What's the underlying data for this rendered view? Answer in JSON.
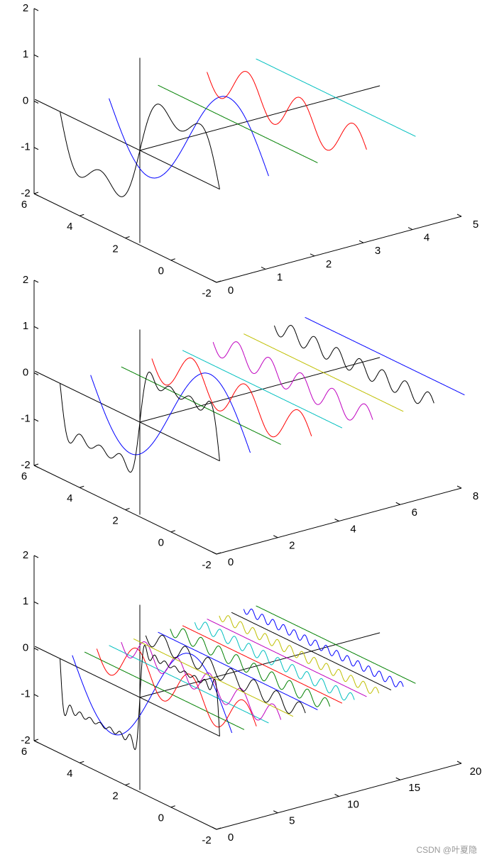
{
  "chart_data": [
    {
      "type": "line3d",
      "xlim": [
        0,
        5
      ],
      "xticks": [
        0,
        1,
        2,
        3,
        4,
        5
      ],
      "ylim": [
        -2,
        6
      ],
      "yticks": [
        -2,
        0,
        2,
        4,
        6
      ],
      "zlim": [
        -2,
        2
      ],
      "zticks": [
        -2,
        -1,
        0,
        1,
        2
      ]
    },
    {
      "type": "line3d",
      "xlim": [
        0,
        8
      ],
      "xticks": [
        0,
        2,
        4,
        6,
        8
      ],
      "ylim": [
        -2,
        6
      ],
      "yticks": [
        -2,
        0,
        2,
        4,
        6
      ],
      "zlim": [
        -2,
        2
      ],
      "zticks": [
        -2,
        -1,
        0,
        1,
        2
      ]
    },
    {
      "type": "line3d",
      "xlim": [
        0,
        20
      ],
      "xticks": [
        0,
        5,
        10,
        15,
        20
      ],
      "ylim": [
        -2,
        6
      ],
      "yticks": [
        -2,
        0,
        2,
        4,
        6
      ],
      "zlim": [
        -2,
        2
      ],
      "zticks": [
        -2,
        -1,
        0,
        1,
        2
      ]
    }
  ],
  "watermark": "CSDN @叶夏隐"
}
